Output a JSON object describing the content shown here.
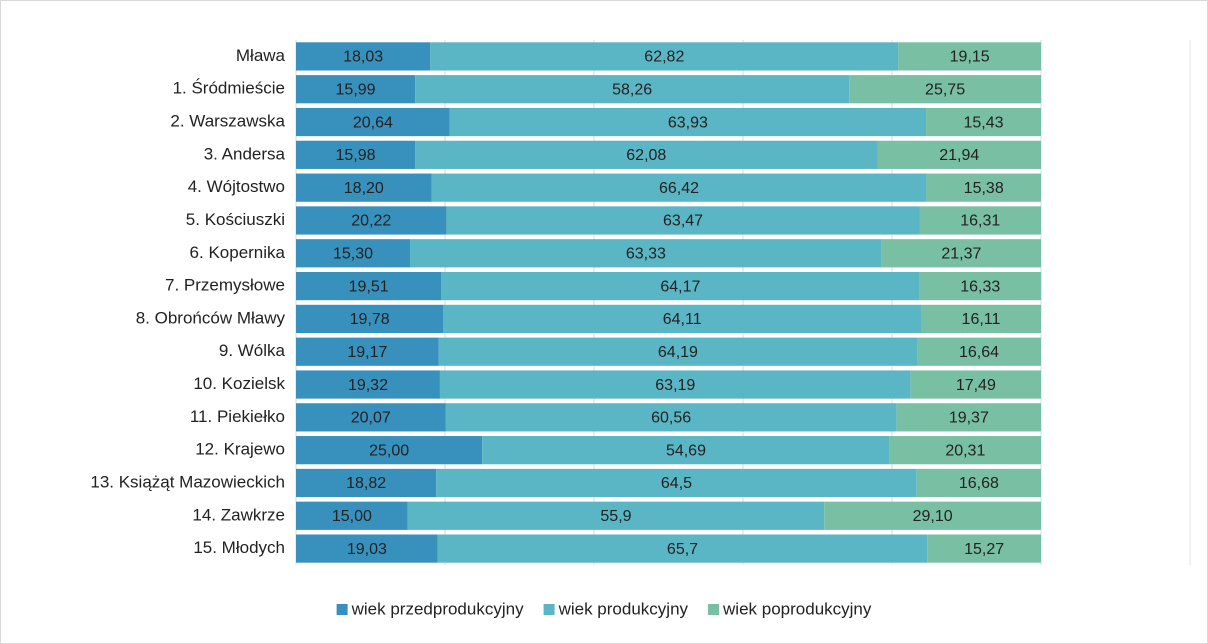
{
  "chart_data": {
    "type": "stacked_barh",
    "categories": [
      "Mława",
      "1. Śródmieście",
      "2. Warszawska",
      "3. Andersa",
      "4. Wójtostwo",
      "5. Kościuszki",
      "6. Kopernika",
      "7. Przemysłowe",
      "8. Obrońców Mławy",
      "9. Wólka",
      "10. Kozielsk",
      "11. Piekiełko",
      "12. Krajewo",
      "13. Książąt Mazowieckich",
      "14. Zawkrze",
      "15. Młodych"
    ],
    "series": [
      {
        "name": "wiek przedprodukcyjny",
        "color": "#3890bc",
        "values": [
          18.03,
          15.99,
          20.64,
          15.98,
          18.2,
          20.22,
          15.3,
          19.51,
          19.78,
          19.17,
          19.32,
          20.07,
          25.0,
          18.82,
          15.0,
          19.03
        ],
        "value_labels": [
          "18,03",
          "15,99",
          "20,64",
          "15,98",
          "18,20",
          "20,22",
          "15,30",
          "19,51",
          "19,78",
          "19,17",
          "19,32",
          "20,07",
          "25,00",
          "18,82",
          "15,00",
          "19,03"
        ]
      },
      {
        "name": "wiek produkcyjny",
        "color": "#5ab5c4",
        "values": [
          62.82,
          58.26,
          63.93,
          62.08,
          66.42,
          63.47,
          63.33,
          64.17,
          64.11,
          64.19,
          63.19,
          60.56,
          54.69,
          64.5,
          55.9,
          65.7
        ],
        "value_labels": [
          "62,82",
          "58,26",
          "63,93",
          "62,08",
          "66,42",
          "63,47",
          "63,33",
          "64,17",
          "64,11",
          "64,19",
          "63,19",
          "60,56",
          "54,69",
          "64,5",
          "55,9",
          "65,7"
        ]
      },
      {
        "name": "wiek poprodukcyjny",
        "color": "#78bfa4",
        "values": [
          19.15,
          25.75,
          15.43,
          21.94,
          15.38,
          16.31,
          21.37,
          16.33,
          16.11,
          16.64,
          17.49,
          19.37,
          20.31,
          16.68,
          29.1,
          15.27
        ],
        "value_labels": [
          "19,15",
          "25,75",
          "15,43",
          "21,94",
          "15,38",
          "16,31",
          "21,37",
          "16,33",
          "16,11",
          "16,64",
          "17,49",
          "19,37",
          "20,31",
          "16,68",
          "29,10",
          "15,27"
        ]
      }
    ],
    "xlim": [
      0,
      100
    ],
    "xticks": [
      0,
      20,
      40,
      60,
      80,
      100
    ],
    "grid": true,
    "legend": "bottom"
  }
}
